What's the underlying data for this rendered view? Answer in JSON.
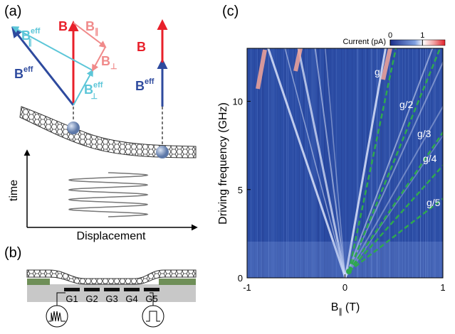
{
  "panel_a": {
    "label": "(a)",
    "left_vectors": [
      {
        "base": "B",
        "sup": "eff",
        "sub": "∥"
      },
      {
        "base": "B"
      },
      {
        "base": "B",
        "sub": "∥"
      },
      {
        "base": "B",
        "sup": "eff"
      },
      {
        "base": "B",
        "sub": "⊥"
      },
      {
        "base": "B",
        "sup": "eff",
        "sub": "⊥"
      }
    ],
    "right_vectors": [
      {
        "base": "B"
      },
      {
        "base": "B",
        "sup": "eff"
      }
    ],
    "y_axis": "time",
    "x_axis": "Displacement"
  },
  "panel_b": {
    "label": "(b)",
    "gates": [
      "G1",
      "G2",
      "G3",
      "G4",
      "G5"
    ]
  },
  "chart_data": {
    "type": "heatmap",
    "label": "(c)",
    "y_label": "Driving frequency (GHz)",
    "x_label": {
      "base": "B",
      "sub": "∥",
      "unit": "(T)"
    },
    "xlim": [
      -1,
      1
    ],
    "xticks": [
      -1,
      0,
      1
    ],
    "ylim": [
      0,
      13
    ],
    "yticks": [
      0,
      5,
      10
    ],
    "colorbar": {
      "title": "Current (pA)",
      "lim": [
        0,
        1.7
      ],
      "ticks": [
        0,
        1
      ]
    },
    "line_labels": [
      "g",
      "g/2",
      "g/3",
      "g/4",
      "g/5"
    ]
  }
}
